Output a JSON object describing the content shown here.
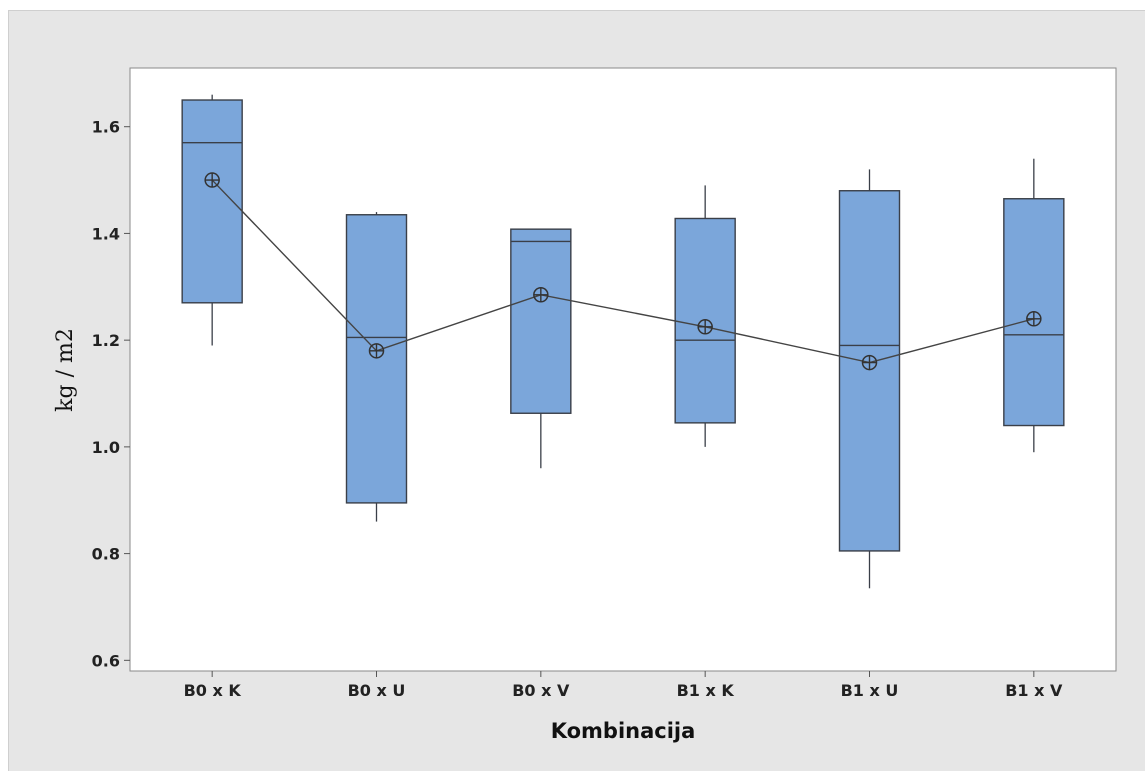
{
  "chart_data": {
    "type": "box",
    "xlabel": "Kombinacija",
    "ylabel": "kg / m2",
    "ylim": [
      0.58,
      1.71
    ],
    "yticks": [
      0.6,
      0.8,
      1.0,
      1.2,
      1.4,
      1.6
    ],
    "ytick_labels": [
      "0.6",
      "0.8",
      "1.0",
      "1.2",
      "1.4",
      "1.6"
    ],
    "categories": [
      "B0 x K",
      "B0 x U",
      "B0 x V",
      "B1 x K",
      "B1 x U",
      "B1 x V"
    ],
    "boxes": [
      {
        "min": 1.19,
        "q1": 1.27,
        "median": 1.57,
        "q3": 1.65,
        "max": 1.66,
        "mean": 1.5
      },
      {
        "min": 0.86,
        "q1": 0.895,
        "median": 1.205,
        "q3": 1.435,
        "max": 1.44,
        "mean": 1.18
      },
      {
        "min": 0.96,
        "q1": 1.063,
        "median": 1.385,
        "q3": 1.408,
        "max": 1.408,
        "mean": 1.285
      },
      {
        "min": 1.0,
        "q1": 1.045,
        "median": 1.2,
        "q3": 1.428,
        "max": 1.49,
        "mean": 1.225
      },
      {
        "min": 0.735,
        "q1": 0.805,
        "median": 1.19,
        "q3": 1.48,
        "max": 1.52,
        "mean": 1.158
      },
      {
        "min": 0.99,
        "q1": 1.04,
        "median": 1.21,
        "q3": 1.465,
        "max": 1.54,
        "mean": 1.24
      }
    ],
    "mean_line": true,
    "grid": false,
    "colors": {
      "box_fill": "#7ba6da",
      "box_stroke": "#3a3f48",
      "line": "#444444",
      "background": "#e6e6e6",
      "plot_area": "#ffffff"
    }
  }
}
